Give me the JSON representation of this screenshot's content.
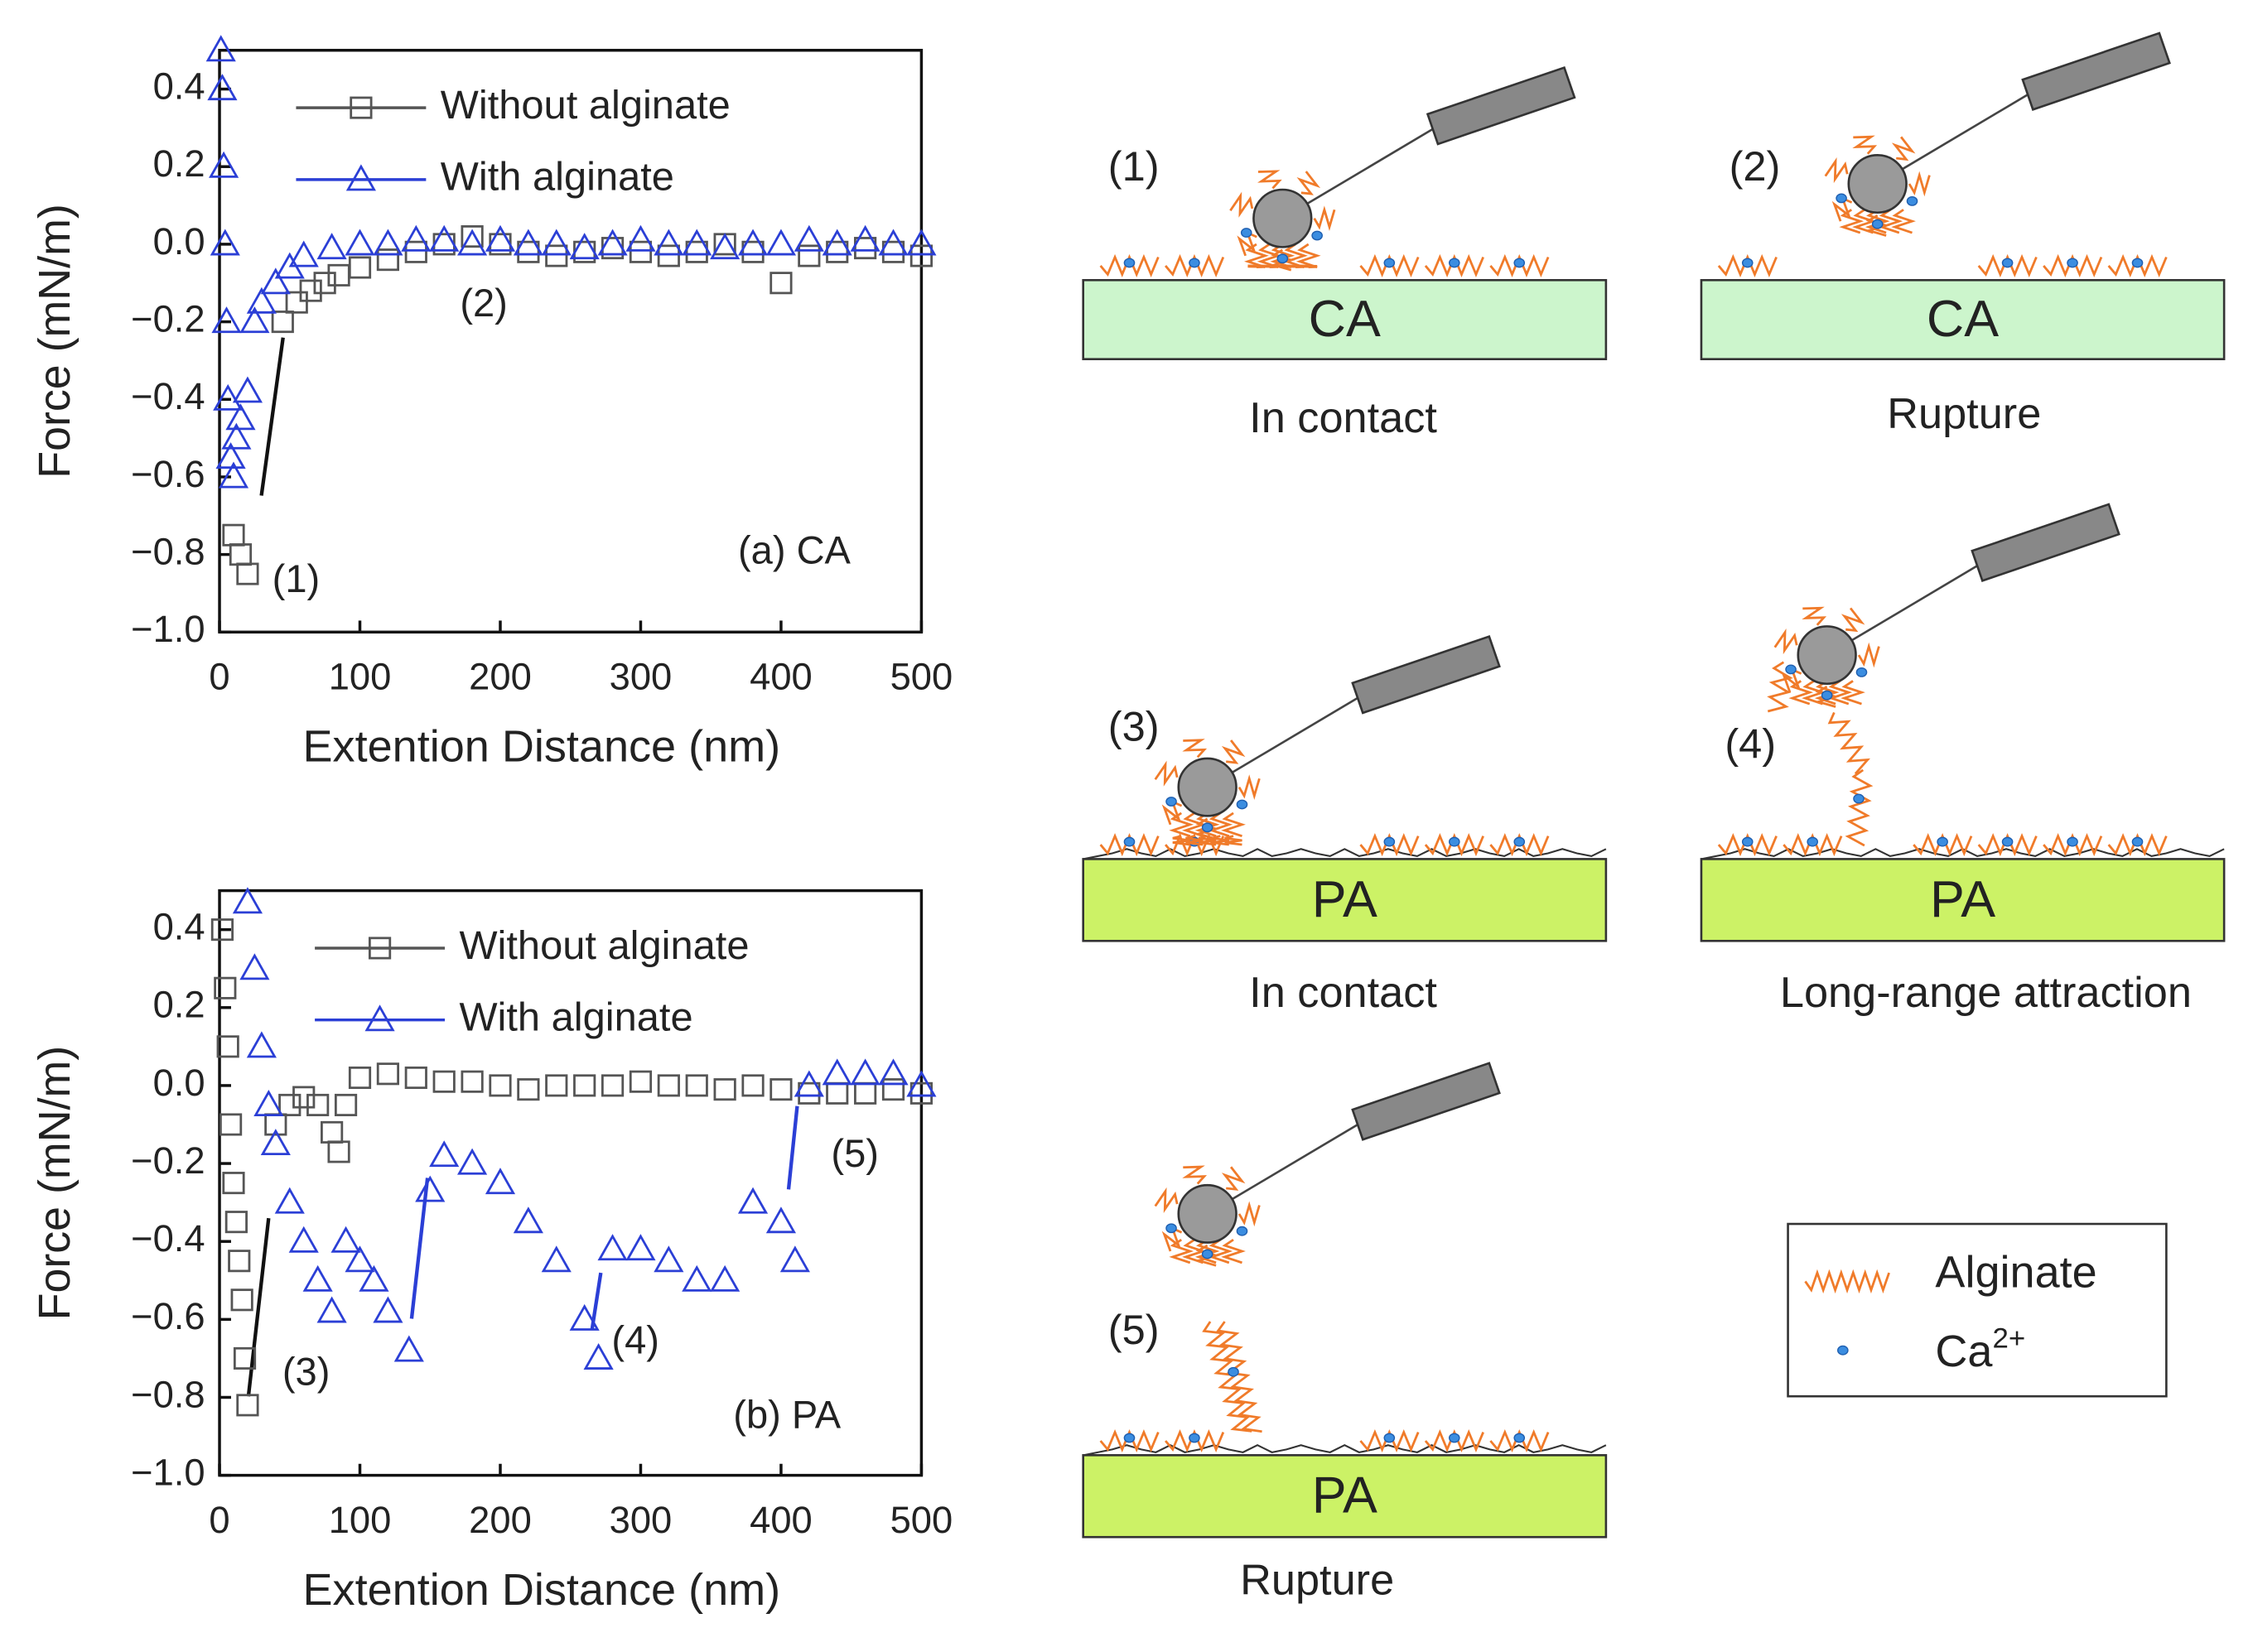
{
  "chart_data": [
    {
      "type": "scatter",
      "ylabel": "Force (mN/m)",
      "xlabel": "Extention Distance (nm)",
      "xlim": [
        0,
        500
      ],
      "ylim": [
        -1.0,
        0.5
      ],
      "xticks": [
        0,
        100,
        200,
        300,
        400,
        500
      ],
      "yticks": [
        {
          "value": -1.0,
          "label": "−1.0"
        },
        {
          "value": -0.8,
          "label": "−0.8"
        },
        {
          "value": -0.6,
          "label": "−0.6"
        },
        {
          "value": -0.4,
          "label": "−0.4"
        },
        {
          "value": -0.2,
          "label": "−0.2"
        },
        {
          "value": 0,
          "label": "0.0"
        },
        0.2,
        0.4
      ],
      "annotations": [
        "(1)",
        "(2)",
        "(a) CA"
      ],
      "series": [
        {
          "name": "Without alginate",
          "color": "#555555",
          "marker": "square",
          "x": [
            10,
            15,
            20,
            45,
            55,
            65,
            75,
            85,
            100,
            120,
            140,
            160,
            180,
            200,
            220,
            240,
            260,
            280,
            300,
            320,
            340,
            360,
            380,
            400,
            420,
            440,
            460,
            480,
            500
          ],
          "values": [
            -0.75,
            -0.8,
            -0.85,
            -0.2,
            -0.15,
            -0.12,
            -0.1,
            -0.08,
            -0.06,
            -0.04,
            -0.02,
            0,
            0.02,
            0,
            -0.02,
            -0.03,
            -0.02,
            -0.01,
            -0.02,
            -0.03,
            -0.02,
            0,
            -0.02,
            -0.1,
            -0.03,
            -0.02,
            -0.01,
            -0.02,
            -0.03
          ]
        },
        {
          "name": "With alginate",
          "color": "#2b3fd6",
          "marker": "triangle",
          "x": [
            1,
            2,
            3,
            4,
            5,
            6,
            8,
            10,
            12,
            15,
            20,
            25,
            30,
            40,
            50,
            60,
            80,
            100,
            120,
            140,
            160,
            180,
            200,
            220,
            240,
            260,
            280,
            300,
            320,
            340,
            360,
            380,
            400,
            420,
            440,
            460,
            480,
            500
          ],
          "values": [
            0.5,
            0.4,
            0.2,
            0,
            -0.2,
            -0.4,
            -0.55,
            -0.6,
            -0.5,
            -0.45,
            -0.38,
            -0.2,
            -0.15,
            -0.1,
            -0.06,
            -0.03,
            -0.01,
            0,
            0,
            0.01,
            0.01,
            0,
            0.01,
            0,
            0,
            -0.01,
            0,
            0.01,
            0,
            0,
            -0.01,
            0,
            0,
            0.01,
            0,
            0.01,
            0,
            0
          ]
        }
      ]
    },
    {
      "type": "scatter",
      "ylabel": "Force (mN/m)",
      "xlabel": "Extention Distance (nm)",
      "xlim": [
        0,
        500
      ],
      "ylim": [
        -1.0,
        0.5
      ],
      "xticks": [
        0,
        100,
        200,
        300,
        400,
        500
      ],
      "yticks": [
        {
          "value": -1.0,
          "label": "−1.0"
        },
        {
          "value": -0.8,
          "label": "−0.8"
        },
        {
          "value": -0.6,
          "label": "−0.6"
        },
        {
          "value": -0.4,
          "label": "−0.4"
        },
        {
          "value": -0.2,
          "label": "−0.2"
        },
        {
          "value": 0,
          "label": "0.0"
        },
        0.2,
        0.4
      ],
      "annotations": [
        "(3)",
        "(4)",
        "(5)",
        "(b) PA"
      ],
      "series": [
        {
          "name": "Without alginate",
          "color": "#555555",
          "marker": "square",
          "x": [
            2,
            4,
            6,
            8,
            10,
            12,
            14,
            16,
            18,
            20,
            40,
            50,
            60,
            70,
            80,
            85,
            90,
            100,
            120,
            140,
            160,
            180,
            200,
            220,
            240,
            260,
            280,
            300,
            320,
            340,
            360,
            380,
            400,
            420,
            440,
            460,
            480,
            500
          ],
          "values": [
            0.4,
            0.25,
            0.1,
            -0.1,
            -0.25,
            -0.35,
            -0.45,
            -0.55,
            -0.7,
            -0.82,
            -0.1,
            -0.05,
            -0.03,
            -0.05,
            -0.12,
            -0.17,
            -0.05,
            0.02,
            0.03,
            0.02,
            0.01,
            0.01,
            0,
            -0.01,
            0,
            0,
            0,
            0.01,
            0,
            0,
            -0.01,
            0,
            -0.01,
            -0.02,
            -0.02,
            -0.02,
            -0.01,
            -0.02
          ]
        },
        {
          "name": "With alginate",
          "color": "#2b3fd6",
          "marker": "triangle",
          "x": [
            20,
            25,
            30,
            35,
            40,
            50,
            60,
            70,
            80,
            90,
            100,
            110,
            120,
            135,
            150,
            160,
            180,
            200,
            220,
            240,
            260,
            270,
            280,
            300,
            320,
            340,
            360,
            380,
            400,
            410,
            420,
            440,
            460,
            480,
            500
          ],
          "values": [
            0.47,
            0.3,
            0.1,
            -0.05,
            -0.15,
            -0.3,
            -0.4,
            -0.5,
            -0.58,
            -0.4,
            -0.45,
            -0.5,
            -0.58,
            -0.68,
            -0.27,
            -0.18,
            -0.2,
            -0.25,
            -0.35,
            -0.45,
            -0.6,
            -0.7,
            -0.42,
            -0.42,
            -0.45,
            -0.5,
            -0.5,
            -0.3,
            -0.35,
            -0.45,
            0,
            0.03,
            0.03,
            0.03,
            0
          ]
        }
      ]
    }
  ],
  "diagram": {
    "panels": [
      {
        "label": "(1)",
        "substrate": "CA",
        "caption": "In contact"
      },
      {
        "label": "(2)",
        "substrate": "CA",
        "caption": "Rupture"
      },
      {
        "label": "(3)",
        "substrate": "PA",
        "caption": "In contact"
      },
      {
        "label": "(4)",
        "substrate": "PA",
        "caption": "Long-range attraction"
      },
      {
        "label": "(5)",
        "substrate": "PA",
        "caption": "Rupture"
      }
    ],
    "legend": [
      {
        "label": "Alginate"
      },
      {
        "label": "Ca",
        "sup": "2+"
      }
    ]
  }
}
